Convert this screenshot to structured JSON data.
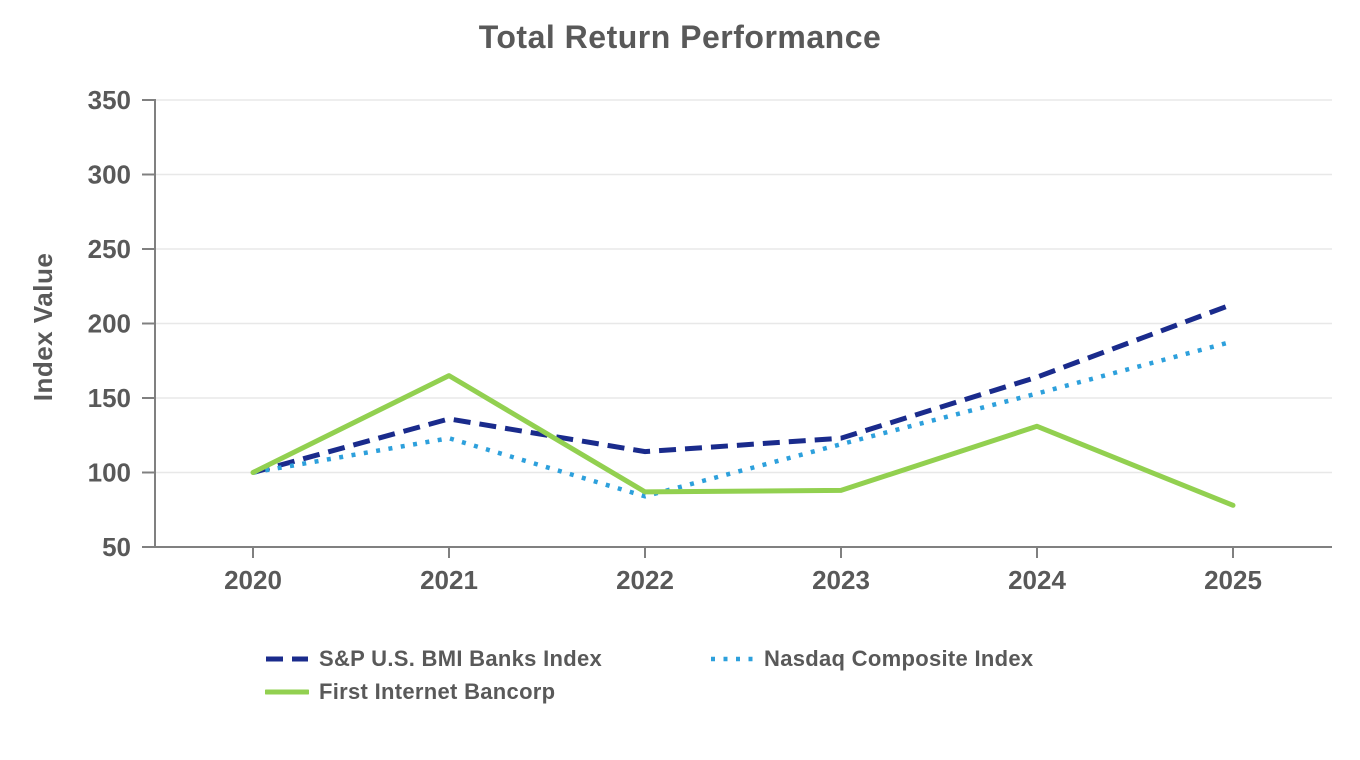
{
  "chart_data": {
    "type": "line",
    "title": "Total Return Performance",
    "xlabel": "",
    "ylabel": "Index Value",
    "categories": [
      "2020",
      "2021",
      "2022",
      "2023",
      "2024",
      "2025"
    ],
    "series": [
      {
        "name": "S&P U.S. BMI Banks Index",
        "style": "dashed",
        "color": "#1a2b8c",
        "values": [
          100,
          136,
          114,
          123,
          164,
          213
        ]
      },
      {
        "name": "Nasdaq Composite Index",
        "style": "dotted",
        "color": "#2da0dc",
        "values": [
          100,
          123,
          84,
          119,
          153,
          188
        ]
      },
      {
        "name": "First Internet Bancorp",
        "style": "solid",
        "color": "#92d050",
        "values": [
          100,
          165,
          87,
          88,
          131,
          78
        ]
      }
    ],
    "y_ticks": [
      50,
      100,
      150,
      200,
      250,
      300,
      350
    ],
    "ylim": [
      50,
      350
    ],
    "grid": true,
    "legend_position": "bottom",
    "colors": {
      "text": "#595959",
      "axis": "#808080",
      "grid": "#e8e8e8"
    }
  }
}
